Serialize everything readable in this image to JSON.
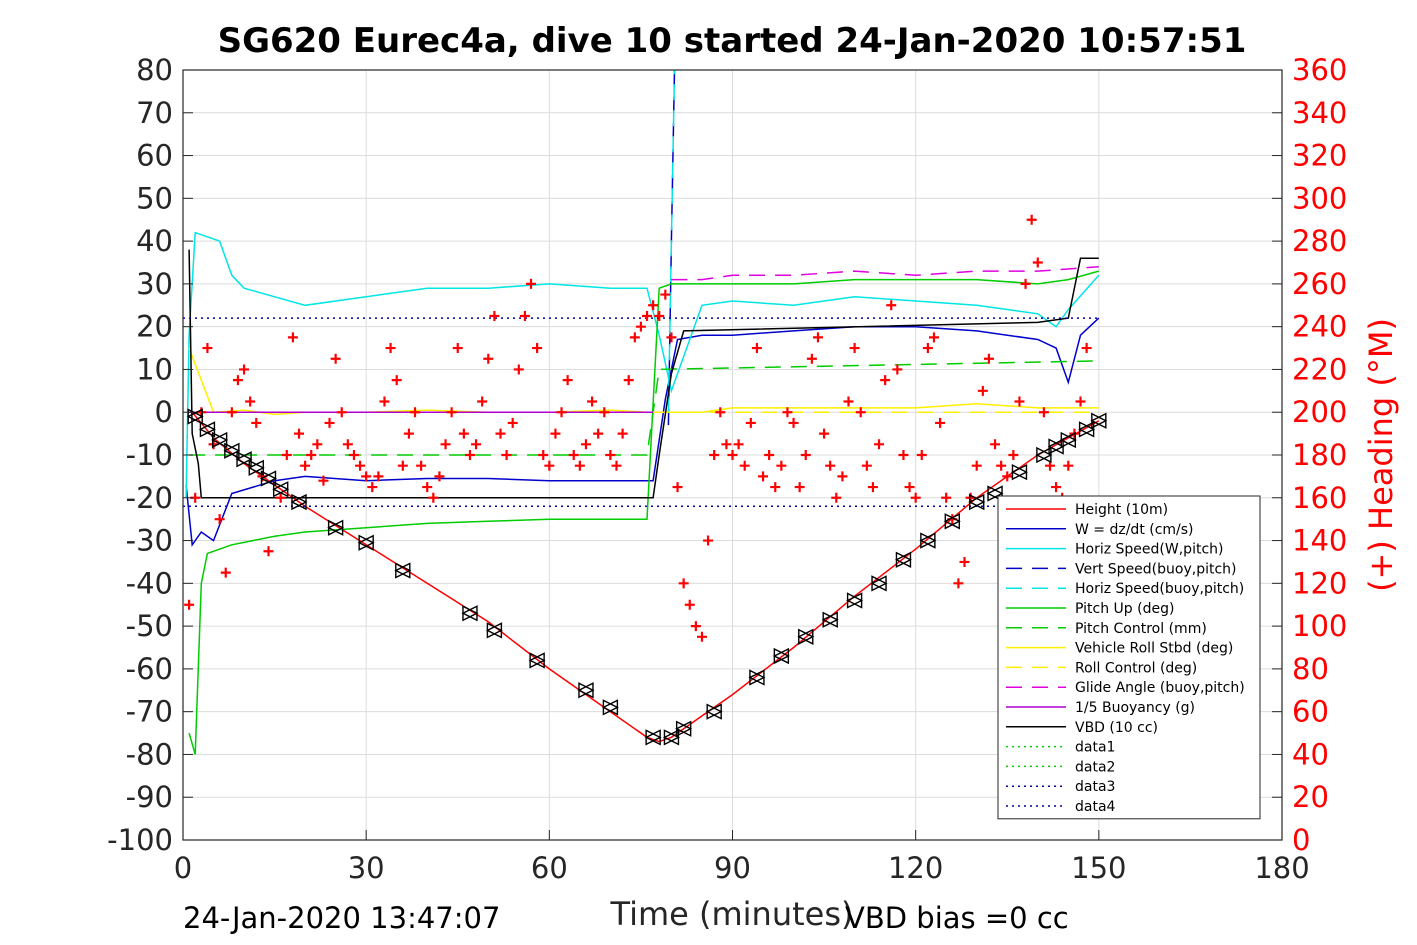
{
  "chart_data": {
    "type": "line",
    "title": "SG620 Eurec4a, dive 10 started 24-Jan-2020 10:57:51",
    "xlabel": "Time (minutes)",
    "ylabel_right": "(+) Heading (°M)",
    "xlim": [
      0,
      180
    ],
    "ylim": [
      -100,
      80
    ],
    "ylim_right": [
      0,
      360
    ],
    "xticks": [
      "0",
      "30",
      "60",
      "90",
      "120",
      "150",
      "180"
    ],
    "yticks": [
      "80",
      "70",
      "60",
      "50",
      "40",
      "30",
      "20",
      "10",
      "0",
      "-10",
      "-20",
      "-30",
      "-40",
      "-50",
      "-60",
      "-70",
      "-80",
      "-90",
      "-100"
    ],
    "yticks_right": [
      "360",
      "340",
      "320",
      "300",
      "280",
      "260",
      "240",
      "220",
      "200",
      "180",
      "160",
      "140",
      "120",
      "100",
      "80",
      "60",
      "40",
      "20",
      "0"
    ],
    "grid": true,
    "legend_position": "bottom-right",
    "footer_left": "24-Jan-2020 13:47:07",
    "footer_right": "VBD bias =0 cc",
    "series": [
      {
        "name": "Height (10m)",
        "color": "#ff0000",
        "style": "solid",
        "x": [
          1.5,
          5,
          10,
          20,
          30,
          40,
          50,
          60,
          70,
          76,
          78,
          80,
          82,
          85,
          90,
          100,
          110,
          120,
          130,
          140,
          145,
          150
        ],
        "y": [
          0,
          -6,
          -12,
          -22,
          -31,
          -40,
          -49,
          -60,
          -70,
          -76,
          -77,
          -76,
          -74,
          -71,
          -66,
          -55,
          -43,
          -32,
          -20,
          -10,
          -6,
          -2
        ]
      },
      {
        "name": "W = dz/dt (cm/s)",
        "color": "#0000cc",
        "style": "solid",
        "x": [
          0.5,
          1.5,
          3,
          5,
          8,
          15,
          20,
          30,
          40,
          50,
          60,
          70,
          77,
          79,
          81,
          85,
          90,
          100,
          110,
          120,
          130,
          140,
          143,
          145,
          147,
          150
        ],
        "y": [
          -17,
          -31,
          -28,
          -30,
          -19,
          -16,
          -15,
          -16,
          -15.5,
          -15.5,
          -16,
          -16,
          -16,
          3,
          17,
          18,
          18,
          19,
          20,
          20,
          19,
          17,
          15,
          7,
          18,
          22
        ]
      },
      {
        "name": "Horiz Speed(W,pitch)",
        "color": "#00e5e5",
        "style": "solid",
        "x": [
          0.5,
          1,
          2,
          4,
          6,
          8,
          10,
          20,
          30,
          40,
          50,
          60,
          70,
          76,
          78,
          80,
          85,
          90,
          100,
          110,
          120,
          130,
          140,
          143,
          145,
          150
        ],
        "y": [
          -20,
          18,
          42,
          41,
          40,
          32,
          29,
          25,
          27,
          29,
          29,
          30,
          29,
          29,
          18,
          5,
          25,
          26,
          25,
          27,
          26,
          25,
          23,
          20,
          24,
          32
        ]
      },
      {
        "name": "Vert Speed(buoy,pitch)",
        "color": "#0000cc",
        "style": "dash",
        "x": [
          79.5,
          80,
          80.5
        ],
        "y": [
          -3,
          40,
          80
        ]
      },
      {
        "name": "Horiz Speed(buoy,pitch)",
        "color": "#00e5e5",
        "style": "dash",
        "x": [
          79.5,
          80,
          80.5
        ],
        "y": [
          0,
          40,
          80
        ]
      },
      {
        "name": "Pitch Up (deg)",
        "color": "#00cc00",
        "style": "solid",
        "x": [
          1,
          2,
          3,
          4,
          8,
          15,
          20,
          30,
          40,
          50,
          60,
          70,
          76,
          78,
          80,
          85,
          90,
          100,
          110,
          120,
          130,
          140,
          145,
          150
        ],
        "y": [
          -75,
          -80,
          -40,
          -33,
          -31,
          -29,
          -28,
          -27,
          -26,
          -25.5,
          -25,
          -25,
          -25,
          29,
          30,
          30,
          30,
          30,
          31,
          31,
          31,
          30,
          31,
          33
        ]
      },
      {
        "name": "Pitch Control (mm)",
        "color": "#00cc00",
        "style": "dash",
        "x": [
          1,
          76,
          78,
          150
        ],
        "y": [
          -10,
          -10,
          10,
          12
        ]
      },
      {
        "name": "Vehicle Roll Stbd (deg)",
        "color": "#ffee00",
        "style": "solid",
        "x": [
          1,
          5,
          10,
          15,
          20,
          30,
          40,
          50,
          60,
          70,
          76,
          80,
          85,
          90,
          100,
          110,
          120,
          130,
          140,
          150
        ],
        "y": [
          15,
          0,
          0.5,
          -0.5,
          0,
          0,
          0.5,
          0,
          0,
          0.5,
          0,
          0,
          0,
          1,
          1,
          1,
          1,
          2,
          1,
          1
        ]
      },
      {
        "name": "Roll Control (deg)",
        "color": "#ffee00",
        "style": "dash",
        "x": [
          1,
          150
        ],
        "y": [
          0,
          0
        ]
      },
      {
        "name": "Glide Angle (buoy,pitch)",
        "color": "#e000e0",
        "style": "dash",
        "x": [
          80,
          85,
          90,
          100,
          110,
          120,
          130,
          140,
          150
        ],
        "y": [
          31,
          31,
          32,
          32,
          33,
          32,
          33,
          33,
          34
        ]
      },
      {
        "name": "1/5 Buoyancy (g)",
        "color": "#b000d0",
        "style": "solid",
        "x": [
          1,
          76,
          77
        ],
        "y": [
          0,
          0,
          0
        ]
      },
      {
        "name": "VBD (10 cc)",
        "color": "#000000",
        "style": "solid",
        "x": [
          1,
          1.5,
          2.5,
          3,
          76,
          77,
          78,
          80,
          82,
          140,
          145,
          147,
          150
        ],
        "y": [
          38,
          -5,
          -12,
          -20,
          -20,
          -20,
          -10,
          9,
          19,
          21,
          22,
          36,
          36
        ]
      },
      {
        "name": "data1",
        "color": "#00cc00",
        "style": "dot",
        "x": [],
        "y": []
      },
      {
        "name": "data2",
        "color": "#00cc00",
        "style": "dot",
        "x": [],
        "y": []
      },
      {
        "name": "data3",
        "color": "#0000aa",
        "style": "dot",
        "x": [
          0,
          150
        ],
        "y": [
          22,
          22
        ]
      },
      {
        "name": "data4",
        "color": "#0000aa",
        "style": "dot",
        "x": [
          0,
          150
        ],
        "y": [
          -22,
          -22
        ]
      }
    ],
    "heading": {
      "color": "#ff0000",
      "marker": "+",
      "axis": "right",
      "x": [
        1,
        2,
        3,
        4,
        5,
        6,
        7,
        8,
        9,
        10,
        11,
        12,
        13,
        14,
        16,
        17,
        18,
        19,
        20,
        21,
        22,
        23,
        24,
        25,
        26,
        27,
        28,
        29,
        30,
        31,
        32,
        33,
        34,
        35,
        36,
        37,
        38,
        39,
        40,
        41,
        42,
        43,
        44,
        45,
        46,
        47,
        48,
        49,
        50,
        51,
        52,
        53,
        54,
        55,
        56,
        57,
        58,
        59,
        60,
        61,
        62,
        63,
        64,
        65,
        66,
        67,
        68,
        69,
        70,
        71,
        72,
        73,
        74,
        75,
        76,
        77,
        78,
        79,
        80,
        81,
        82,
        83,
        84,
        85,
        86,
        87,
        88,
        89,
        90,
        91,
        92,
        93,
        94,
        95,
        96,
        97,
        98,
        99,
        100,
        101,
        102,
        103,
        104,
        105,
        106,
        107,
        108,
        109,
        110,
        111,
        112,
        113,
        114,
        115,
        116,
        117,
        118,
        119,
        120,
        121,
        122,
        123,
        124,
        125,
        126,
        127,
        128,
        129,
        130,
        131,
        132,
        133,
        134,
        135,
        136,
        137,
        138,
        139,
        140,
        141,
        142,
        143,
        144,
        145,
        146,
        147,
        148
      ],
      "y": [
        110,
        160,
        200,
        230,
        185,
        150,
        125,
        200,
        215,
        220,
        205,
        195,
        170,
        135,
        160,
        180,
        235,
        190,
        175,
        180,
        185,
        168,
        195,
        225,
        200,
        185,
        180,
        175,
        170,
        165,
        170,
        205,
        230,
        215,
        175,
        190,
        200,
        175,
        165,
        160,
        170,
        185,
        200,
        230,
        190,
        180,
        185,
        205,
        225,
        245,
        190,
        180,
        195,
        220,
        245,
        260,
        230,
        180,
        175,
        190,
        200,
        215,
        180,
        175,
        185,
        205,
        190,
        200,
        180,
        175,
        190,
        215,
        235,
        240,
        245,
        250,
        245,
        255,
        235,
        165,
        120,
        110,
        100,
        95,
        140,
        180,
        200,
        185,
        180,
        185,
        175,
        195,
        230,
        170,
        180,
        165,
        175,
        200,
        195,
        165,
        180,
        225,
        235,
        190,
        175,
        160,
        170,
        205,
        230,
        200,
        175,
        165,
        185,
        215,
        250,
        220,
        180,
        165,
        160,
        180,
        230,
        235,
        195,
        160,
        150,
        120,
        130,
        160,
        175,
        210,
        225,
        185,
        175,
        170,
        180,
        205,
        260,
        290,
        270,
        200,
        175,
        165,
        160,
        175,
        190,
        205,
        230
      ]
    },
    "depth_markers": {
      "color": "#000000",
      "marker": "triangle",
      "x": [
        2,
        4,
        6,
        8,
        10,
        12,
        14,
        16,
        19,
        25,
        30,
        36,
        47,
        51,
        58,
        66,
        70,
        77,
        80,
        82,
        87,
        94,
        98,
        102,
        106,
        110,
        114,
        118,
        122,
        126,
        130,
        133,
        137,
        141,
        143,
        145,
        148,
        150
      ],
      "y": [
        -1,
        -4,
        -6.5,
        -9,
        -11,
        -13,
        -15.5,
        -18,
        -21,
        -27,
        -30.5,
        -37,
        -47,
        -51,
        -58,
        -65,
        -69,
        -76,
        -76,
        -74,
        -70,
        -62,
        -57,
        -52.5,
        -48.5,
        -44,
        -40,
        -34.5,
        -30,
        -25.5,
        -21,
        -19,
        -14,
        -10,
        -8,
        -6.5,
        -4,
        -2
      ]
    }
  }
}
